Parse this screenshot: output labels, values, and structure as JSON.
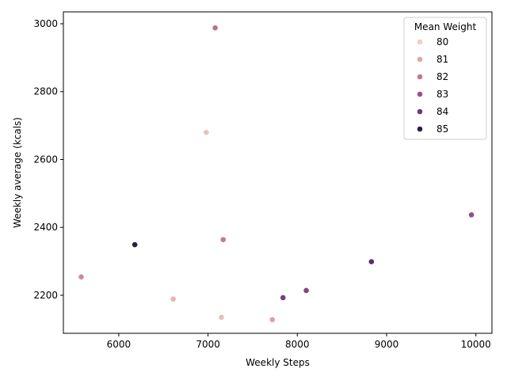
{
  "chart_data": {
    "type": "scatter",
    "xlabel": "Weekly Steps",
    "ylabel": "Weekly average (kcals)",
    "xlim": [
      5380,
      10180
    ],
    "ylim": [
      2088,
      3035
    ],
    "xticks": [
      6000,
      7000,
      8000,
      9000,
      10000
    ],
    "yticks": [
      2200,
      2400,
      2600,
      2800,
      3000
    ],
    "xtick_labels": [
      "6000",
      "7000",
      "8000",
      "9000",
      "10000"
    ],
    "ytick_labels": [
      "2200",
      "2400",
      "2600",
      "2800",
      "3000"
    ],
    "grid": false,
    "hue_range": [
      80,
      85
    ],
    "colormap": [
      "#efd0c3",
      "#dca6a6",
      "#c17a91",
      "#9a5485",
      "#683a73",
      "#2d1e3e"
    ],
    "legend": {
      "title": "Mean Weight",
      "placement": "upper right",
      "entries": [
        {
          "label": "80",
          "value": 80
        },
        {
          "label": "81",
          "value": 81
        },
        {
          "label": "82",
          "value": 82
        },
        {
          "label": "83",
          "value": 83
        },
        {
          "label": "84",
          "value": 84
        },
        {
          "label": "85",
          "value": 85
        }
      ]
    },
    "points": [
      {
        "x": 7080,
        "y": 2988,
        "hue": 82.2
      },
      {
        "x": 6980,
        "y": 2680,
        "hue": 80.3
      },
      {
        "x": 9950,
        "y": 2437,
        "hue": 83.2
      },
      {
        "x": 7170,
        "y": 2364,
        "hue": 82.0
      },
      {
        "x": 6180,
        "y": 2349,
        "hue": 85.0
      },
      {
        "x": 8830,
        "y": 2299,
        "hue": 84.3
      },
      {
        "x": 5580,
        "y": 2254,
        "hue": 81.6
      },
      {
        "x": 8100,
        "y": 2214,
        "hue": 83.5
      },
      {
        "x": 7840,
        "y": 2193,
        "hue": 83.8
      },
      {
        "x": 6610,
        "y": 2189,
        "hue": 80.6
      },
      {
        "x": 7150,
        "y": 2135,
        "hue": 80.4
      },
      {
        "x": 7720,
        "y": 2128,
        "hue": 81.1
      }
    ]
  }
}
